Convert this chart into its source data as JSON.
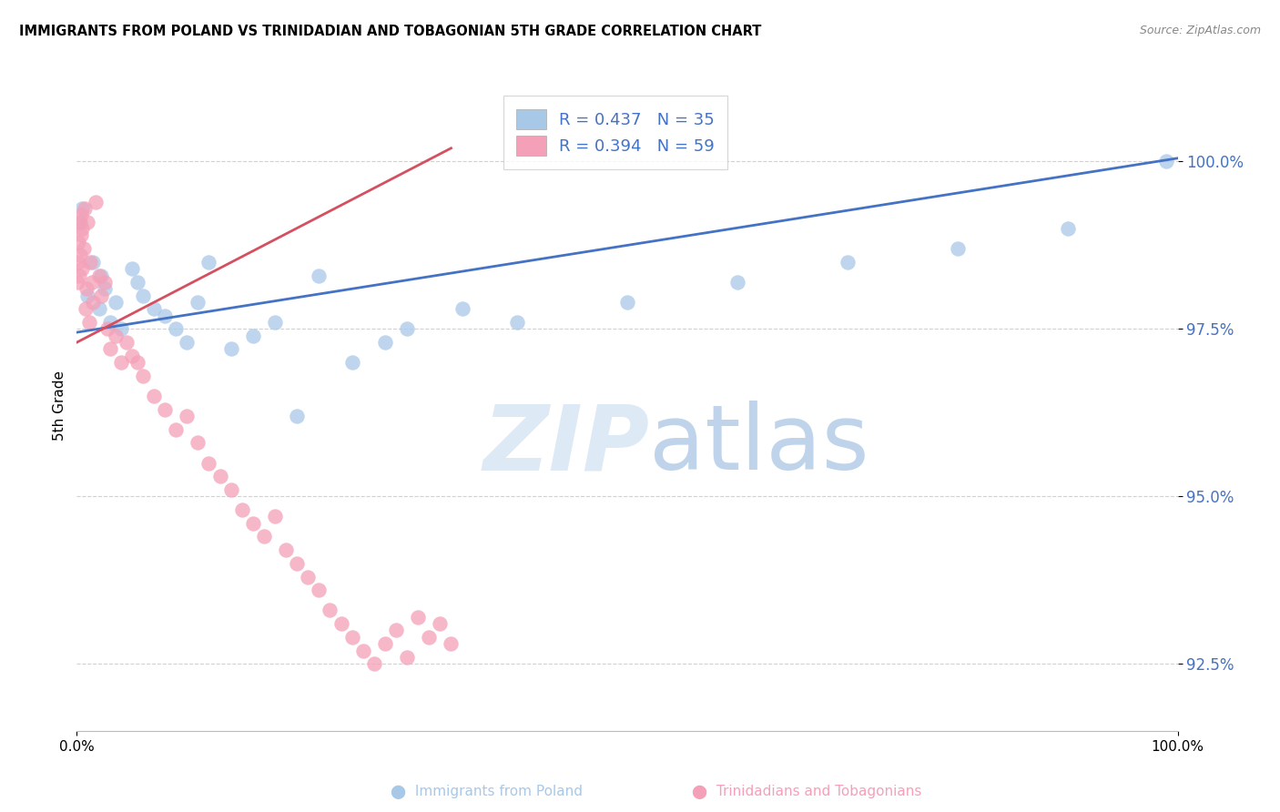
{
  "title": "IMMIGRANTS FROM POLAND VS TRINIDADIAN AND TOBAGONIAN 5TH GRADE CORRELATION CHART",
  "source": "Source: ZipAtlas.com",
  "ylabel": "5th Grade",
  "y_ticks": [
    92.5,
    95.0,
    97.5,
    100.0
  ],
  "y_tick_labels": [
    "92.5%",
    "95.0%",
    "97.5%",
    "100.0%"
  ],
  "x_ticks": [
    0,
    100
  ],
  "x_tick_labels": [
    "0.0%",
    "100.0%"
  ],
  "x_range": [
    0.0,
    100.0
  ],
  "y_range": [
    91.5,
    101.2
  ],
  "color_blue": "#a8c8e8",
  "color_pink": "#f4a0b8",
  "line_blue": "#4472c4",
  "line_pink": "#d45060",
  "tick_color": "#4472c4",
  "blue_scatter_x": [
    0.3,
    0.5,
    1.0,
    1.5,
    2.0,
    2.2,
    2.5,
    3.0,
    3.5,
    4.0,
    5.0,
    5.5,
    6.0,
    7.0,
    8.0,
    9.0,
    10.0,
    11.0,
    12.0,
    14.0,
    16.0,
    18.0,
    20.0,
    22.0,
    25.0,
    28.0,
    30.0,
    35.0,
    40.0,
    50.0,
    60.0,
    70.0,
    80.0,
    90.0,
    99.0
  ],
  "blue_scatter_y": [
    99.1,
    99.3,
    98.0,
    98.5,
    97.8,
    98.3,
    98.1,
    97.6,
    97.9,
    97.5,
    98.4,
    98.2,
    98.0,
    97.8,
    97.7,
    97.5,
    97.3,
    97.9,
    98.5,
    97.2,
    97.4,
    97.6,
    96.2,
    98.3,
    97.0,
    97.3,
    97.5,
    97.8,
    97.6,
    97.9,
    98.2,
    98.5,
    98.7,
    99.0,
    100.0
  ],
  "pink_scatter_x": [
    0.05,
    0.1,
    0.15,
    0.2,
    0.25,
    0.3,
    0.35,
    0.4,
    0.45,
    0.5,
    0.6,
    0.7,
    0.8,
    0.9,
    1.0,
    1.1,
    1.2,
    1.4,
    1.5,
    1.7,
    2.0,
    2.2,
    2.5,
    2.8,
    3.0,
    3.5,
    4.0,
    4.5,
    5.0,
    5.5,
    6.0,
    7.0,
    8.0,
    9.0,
    10.0,
    11.0,
    12.0,
    13.0,
    14.0,
    15.0,
    16.0,
    17.0,
    18.0,
    19.0,
    20.0,
    21.0,
    22.0,
    23.0,
    24.0,
    25.0,
    26.0,
    27.0,
    28.0,
    29.0,
    30.0,
    31.0,
    32.0,
    33.0,
    34.0
  ],
  "pink_scatter_y": [
    98.2,
    98.5,
    98.8,
    99.1,
    98.3,
    98.6,
    98.9,
    99.2,
    98.4,
    99.0,
    98.7,
    99.3,
    97.8,
    98.1,
    99.1,
    97.6,
    98.5,
    98.2,
    97.9,
    99.4,
    98.3,
    98.0,
    98.2,
    97.5,
    97.2,
    97.4,
    97.0,
    97.3,
    97.1,
    97.0,
    96.8,
    96.5,
    96.3,
    96.0,
    96.2,
    95.8,
    95.5,
    95.3,
    95.1,
    94.8,
    94.6,
    94.4,
    94.7,
    94.2,
    94.0,
    93.8,
    93.6,
    93.3,
    93.1,
    92.9,
    92.7,
    92.5,
    92.8,
    93.0,
    92.6,
    93.2,
    92.9,
    93.1,
    92.8
  ],
  "blue_line_x0": 0,
  "blue_line_x1": 100,
  "blue_line_y0": 97.45,
  "blue_line_y1": 100.05,
  "pink_line_x0": 0,
  "pink_line_x1": 34,
  "pink_line_y0": 97.3,
  "pink_line_y1": 100.2
}
